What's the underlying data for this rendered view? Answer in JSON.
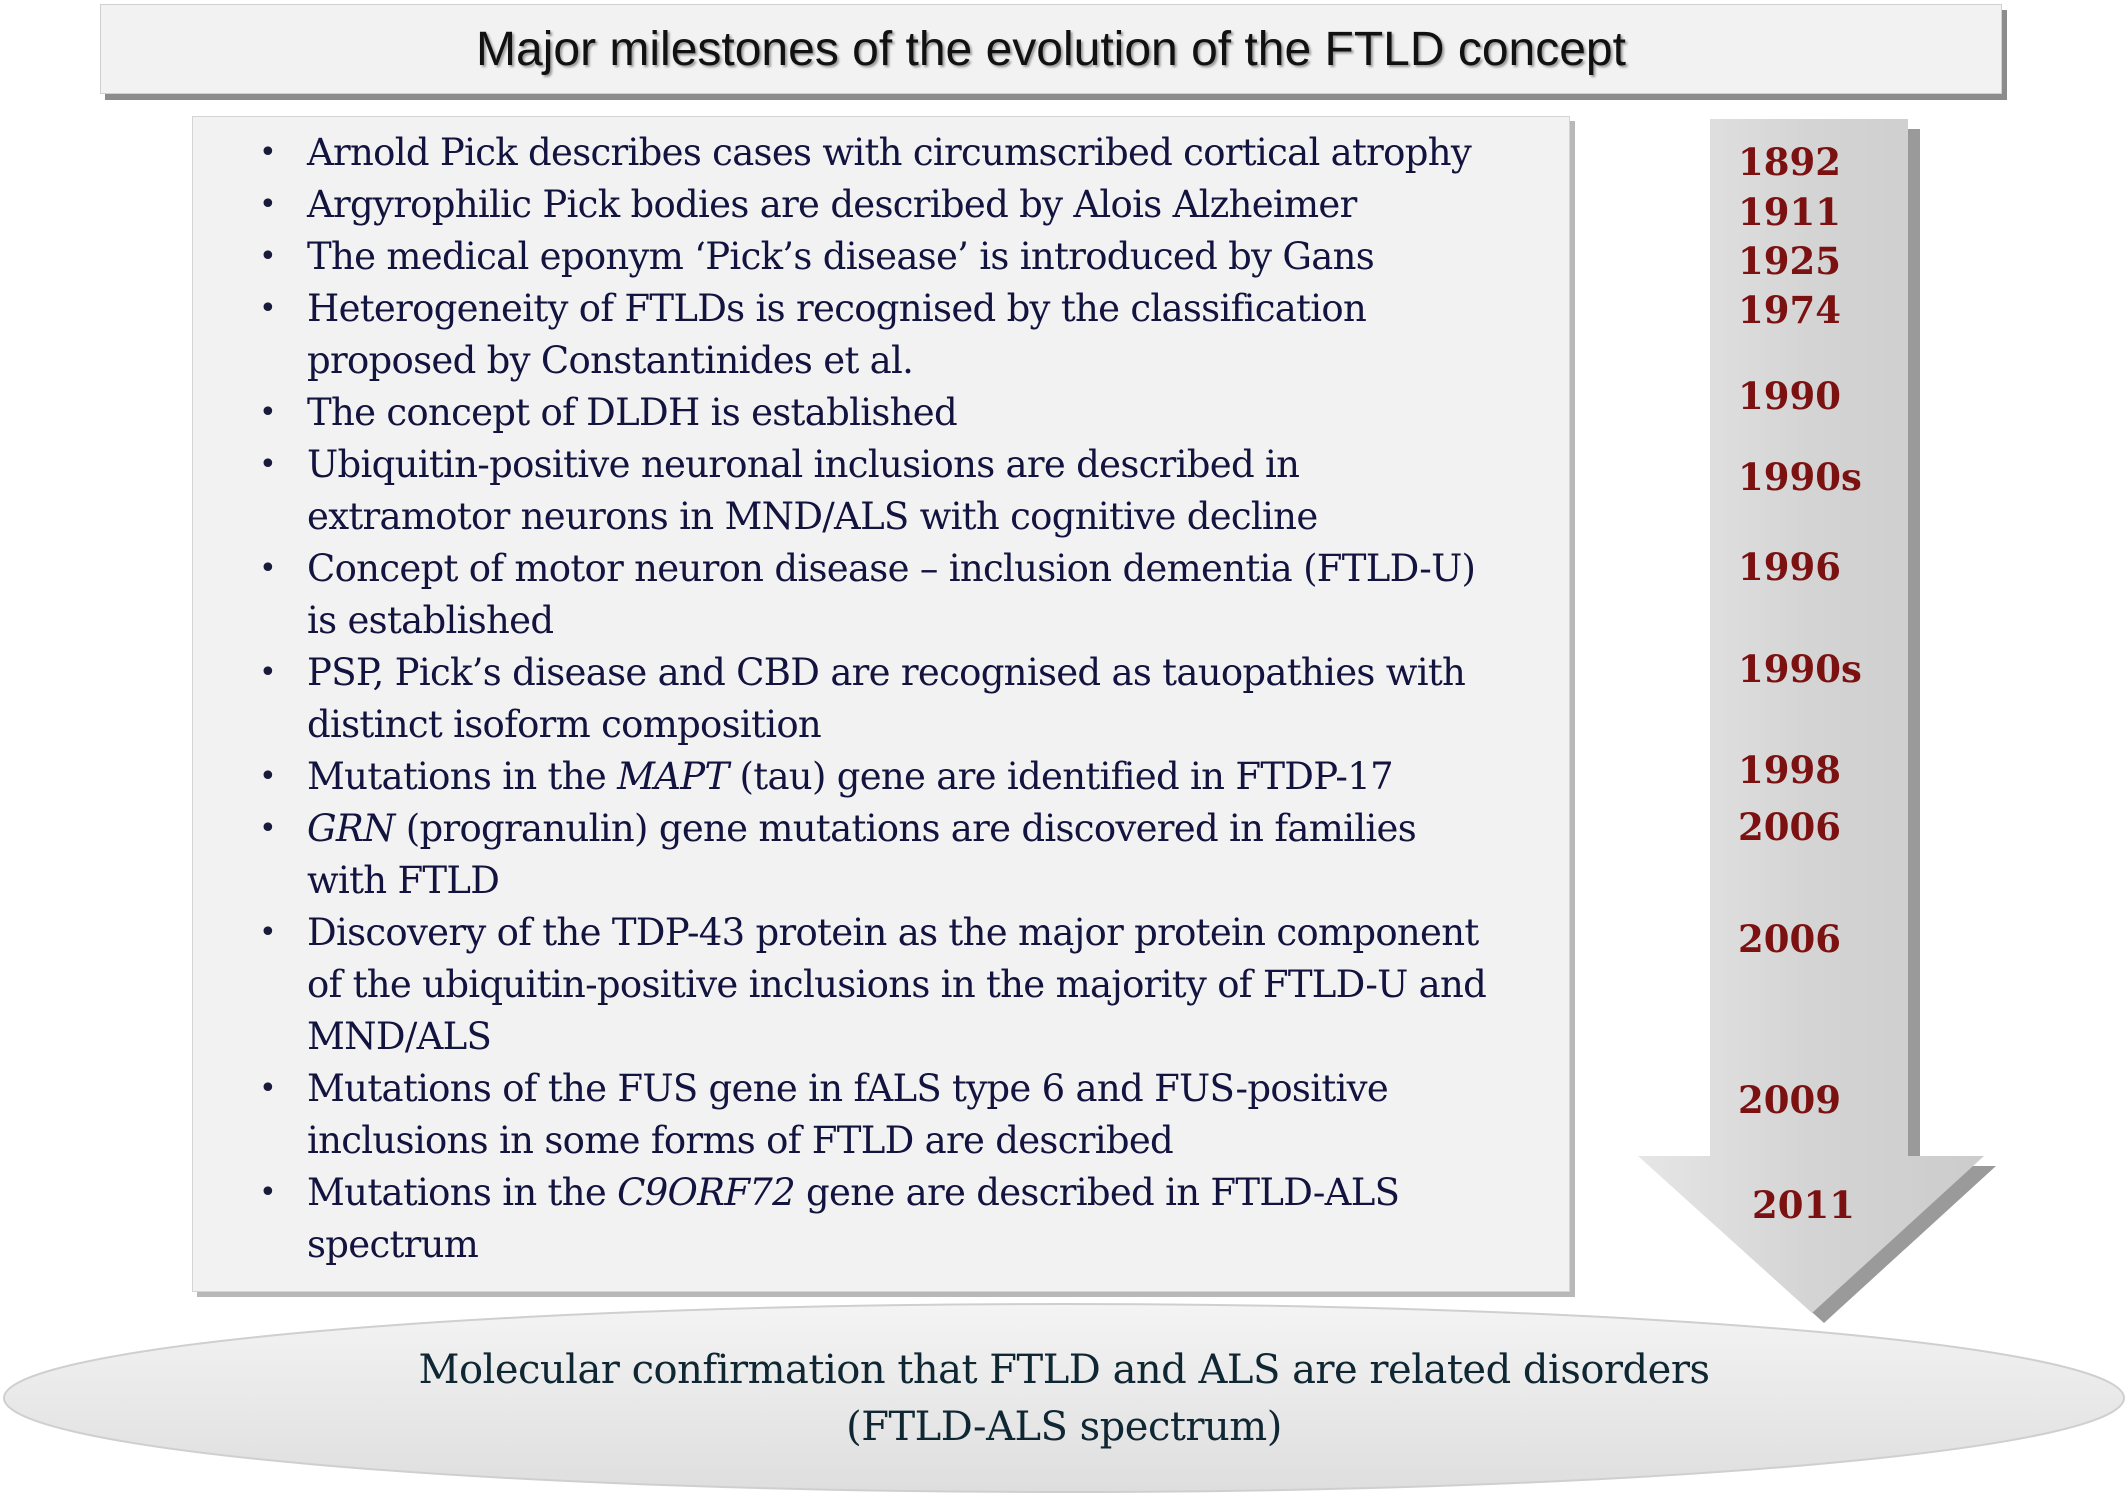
{
  "title": "Major milestones of the evolution of the FTLD concept",
  "milestones": [
    {
      "lines": [
        "Arnold Pick describes cases with circumscribed cortical atrophy"
      ],
      "year": "1892"
    },
    {
      "lines": [
        "Argyrophilic Pick bodies are described by Alois Alzheimer"
      ],
      "year": "1911"
    },
    {
      "lines": [
        "The medical eponym ‘Pick’s disease’ is introduced by Gans"
      ],
      "year": "1925"
    },
    {
      "lines": [
        "Heterogeneity of FTLDs is recognised by the classification",
        "proposed by Constantinides et al."
      ],
      "year": "1974"
    },
    {
      "lines": [
        "The concept of DLDH is established"
      ],
      "year": "1990"
    },
    {
      "lines": [
        "Ubiquitin-positive neuronal inclusions are described in",
        "extramotor neurons in MND/ALS with cognitive decline"
      ],
      "year": "1990s"
    },
    {
      "lines": [
        "Concept of motor neuron disease – inclusion dementia (FTLD-U)",
        "is established"
      ],
      "year": "1996"
    },
    {
      "lines": [
        "PSP, Pick’s disease and CBD are recognised as tauopathies with",
        "distinct isoform composition"
      ],
      "year": "1990s"
    },
    {
      "line1_pre": "Mutations in the ",
      "line1_italic": "MAPT",
      "line1_post": " (tau) gene are identified in FTDP-17",
      "year": "1998"
    },
    {
      "line1_pre": "",
      "line1_italic": "GRN",
      "line1_post": " (progranulin) gene mutations are discovered in families",
      "line2": "with FTLD",
      "year": "2006"
    },
    {
      "lines": [
        "Discovery of the TDP-43 protein as the major protein component",
        "of the ubiquitin-positive inclusions in the majority of FTLD-U and",
        "MND/ALS"
      ],
      "year": "2006"
    },
    {
      "lines": [
        "Mutations of the FUS gene in fALS type 6 and FUS-positive",
        "inclusions in some forms of FTLD are described"
      ],
      "year": "2009"
    },
    {
      "line1_pre": "Mutations in the ",
      "line1_italic": "C9ORF72",
      "line1_post": " gene are described in FTLD-ALS",
      "line2": "spectrum",
      "year": "2011"
    }
  ],
  "conclusion": {
    "line1": "Molecular confirmation that FTLD and ALS are related disorders",
    "line2": "(FTLD-ALS spectrum)"
  },
  "colors": {
    "year": "#7b1111",
    "item_text": "#13133f",
    "box_fill": "#f2f2f2",
    "arrow_fill": "#d9d9d9"
  }
}
